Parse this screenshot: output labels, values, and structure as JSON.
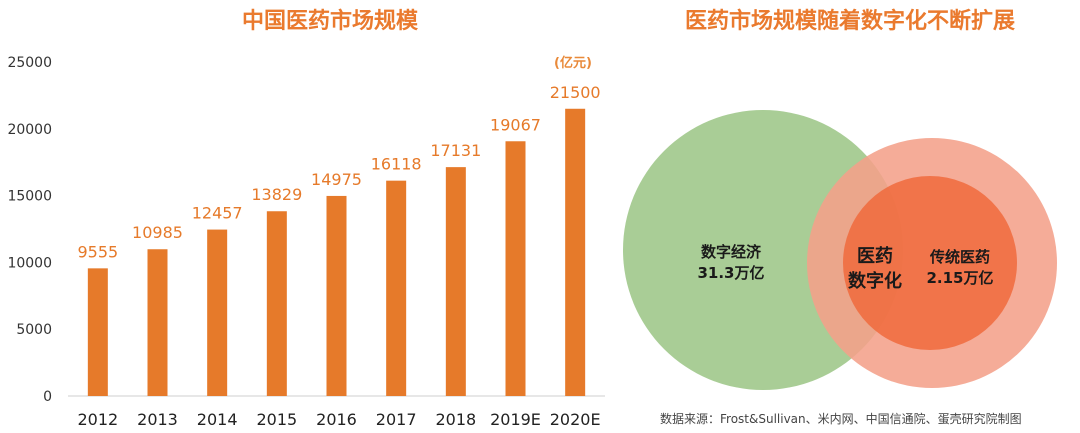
{
  "left": {
    "title": "中国医药市场规模",
    "unit": "(亿元)"
  },
  "right": {
    "title": "医药市场规模随着数字化不断扩展",
    "venn": {
      "digital_economy": {
        "name": "数字经济",
        "value": "31.3万亿"
      },
      "overlap": {
        "line1": "医药",
        "line2": "数字化"
      },
      "traditional_medicine": {
        "name": "传统医药",
        "value": "2.15万亿"
      }
    },
    "source": "数据来源：Frost&Sullivan、米内网、中国信通院、蛋壳研究院制图"
  },
  "colors": {
    "bar": "#e67a2a",
    "title": "#ea7a2e",
    "circle_green": "#a9cd96",
    "circle_outer_red": "#f4a08a",
    "circle_inner_red": "#f06a3c"
  },
  "chart_data": {
    "type": "bar",
    "categories": [
      "2012",
      "2013",
      "2014",
      "2015",
      "2016",
      "2017",
      "2018",
      "2019E",
      "2020E"
    ],
    "values": [
      9555,
      10985,
      12457,
      13829,
      14975,
      16118,
      17131,
      19067,
      21500
    ],
    "title": "中国医药市场规模",
    "unit": "(亿元)",
    "ylim": [
      0,
      25000
    ],
    "yticks": [
      0,
      5000,
      10000,
      15000,
      20000,
      25000
    ],
    "grid": false,
    "legend": "none"
  }
}
